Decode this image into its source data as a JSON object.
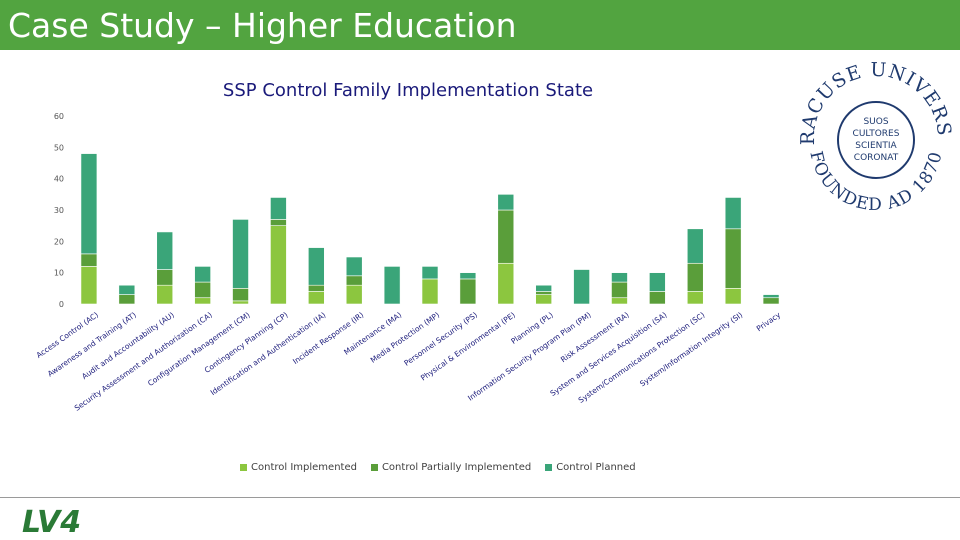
{
  "slide": {
    "title": "Case Study – Higher Education"
  },
  "seal": {
    "top_text": "SYRACUSE UNIVERSITY",
    "bottom_text": "FOUNDED AD 1870",
    "motto": [
      "SUOS",
      "CULTORES",
      "SCIENTIA",
      "CORONAT"
    ]
  },
  "logo": {
    "text": "LV4"
  },
  "colors": {
    "header": "#52a440",
    "implemented": "#8cc63f",
    "partial": "#5a9e3a",
    "planned": "#3aa579"
  },
  "chart_data": {
    "type": "bar",
    "stacked": true,
    "title": "SSP Control Family Implementation State",
    "xlabel": "",
    "ylabel": "",
    "ylim": [
      0,
      60
    ],
    "yticks": [
      0,
      10,
      20,
      30,
      40,
      50,
      60
    ],
    "grid": false,
    "legend_position": "bottom",
    "categories": [
      "Access Control (AC)",
      "Awareness and Training (AT)",
      "Audit and Accountability (AU)",
      "Security Assessment and Authorization (CA)",
      "Configuration Management (CM)",
      "Contingency Planning (CP)",
      "Identification and Authentication (IA)",
      "Incident Response (IR)",
      "Maintenance (MA)",
      "Media Protection (MP)",
      "Personnel Security (PS)",
      "Physical & Environmental (PE)",
      "Planning (PL)",
      "Information Security Program Plan (PM)",
      "Risk Assessment (RA)",
      "System and Services Acquisition (SA)",
      "System/Communications Protection (SC)",
      "System/Information Integrity (SI)",
      "Privacy"
    ],
    "series": [
      {
        "name": "Control Implemented",
        "values": [
          12,
          0,
          6,
          2,
          1,
          25,
          4,
          6,
          0,
          8,
          0,
          13,
          3,
          0,
          2,
          0,
          4,
          5,
          0
        ]
      },
      {
        "name": "Control Partially Implemented",
        "values": [
          4,
          3,
          5,
          5,
          4,
          2,
          2,
          3,
          0,
          0,
          8,
          17,
          1,
          0,
          5,
          4,
          9,
          19,
          2
        ]
      },
      {
        "name": "Control Planned",
        "values": [
          32,
          3,
          12,
          5,
          22,
          7,
          12,
          6,
          12,
          4,
          2,
          5,
          2,
          11,
          3,
          6,
          11,
          10,
          1
        ]
      }
    ]
  }
}
